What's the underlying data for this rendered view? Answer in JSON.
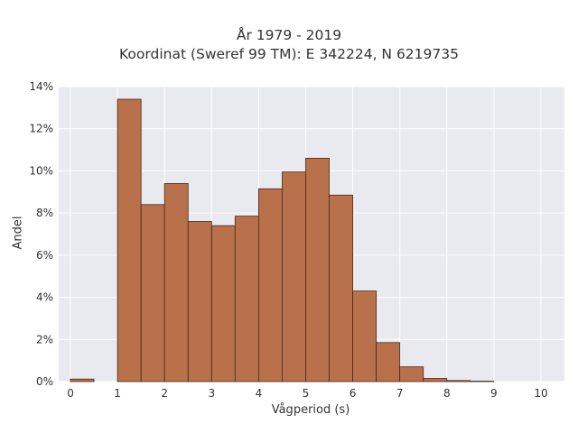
{
  "chart_data": {
    "type": "bar",
    "title": "År 1979 - 2019",
    "subtitle": "Koordinat (Sweref 99 TM): E 342224, N 6219735",
    "xlabel": "Vågperiod (s)",
    "ylabel": "Andel",
    "xlim": [
      -0.25,
      10.5
    ],
    "ylim": [
      0,
      14
    ],
    "xticks": [
      0,
      1,
      2,
      3,
      4,
      5,
      6,
      7,
      8,
      9,
      10
    ],
    "xtick_labels": [
      "0",
      "1",
      "2",
      "3",
      "4",
      "5",
      "6",
      "7",
      "8",
      "9",
      "10"
    ],
    "yticks": [
      0,
      2,
      4,
      6,
      8,
      10,
      12,
      14
    ],
    "ytick_labels": [
      "0%",
      "2%",
      "4%",
      "6%",
      "8%",
      "10%",
      "12%",
      "14%"
    ],
    "grid": true,
    "bar_color": "#b8714a",
    "bar_edge_color": "#4a2a18",
    "plot_background": "#e9e9f0",
    "bin_width": 0.5,
    "bins": [
      {
        "start": 0.0,
        "value": 0.12
      },
      {
        "start": 1.0,
        "value": 13.4
      },
      {
        "start": 1.5,
        "value": 8.4
      },
      {
        "start": 2.0,
        "value": 9.4
      },
      {
        "start": 2.5,
        "value": 7.6
      },
      {
        "start": 3.0,
        "value": 7.4
      },
      {
        "start": 3.5,
        "value": 7.85
      },
      {
        "start": 4.0,
        "value": 9.15
      },
      {
        "start": 4.5,
        "value": 9.95
      },
      {
        "start": 5.0,
        "value": 10.6
      },
      {
        "start": 5.5,
        "value": 8.85
      },
      {
        "start": 6.0,
        "value": 4.3
      },
      {
        "start": 6.5,
        "value": 1.85
      },
      {
        "start": 7.0,
        "value": 0.7
      },
      {
        "start": 7.5,
        "value": 0.15
      },
      {
        "start": 8.0,
        "value": 0.05
      },
      {
        "start": 8.5,
        "value": 0.02
      }
    ]
  }
}
